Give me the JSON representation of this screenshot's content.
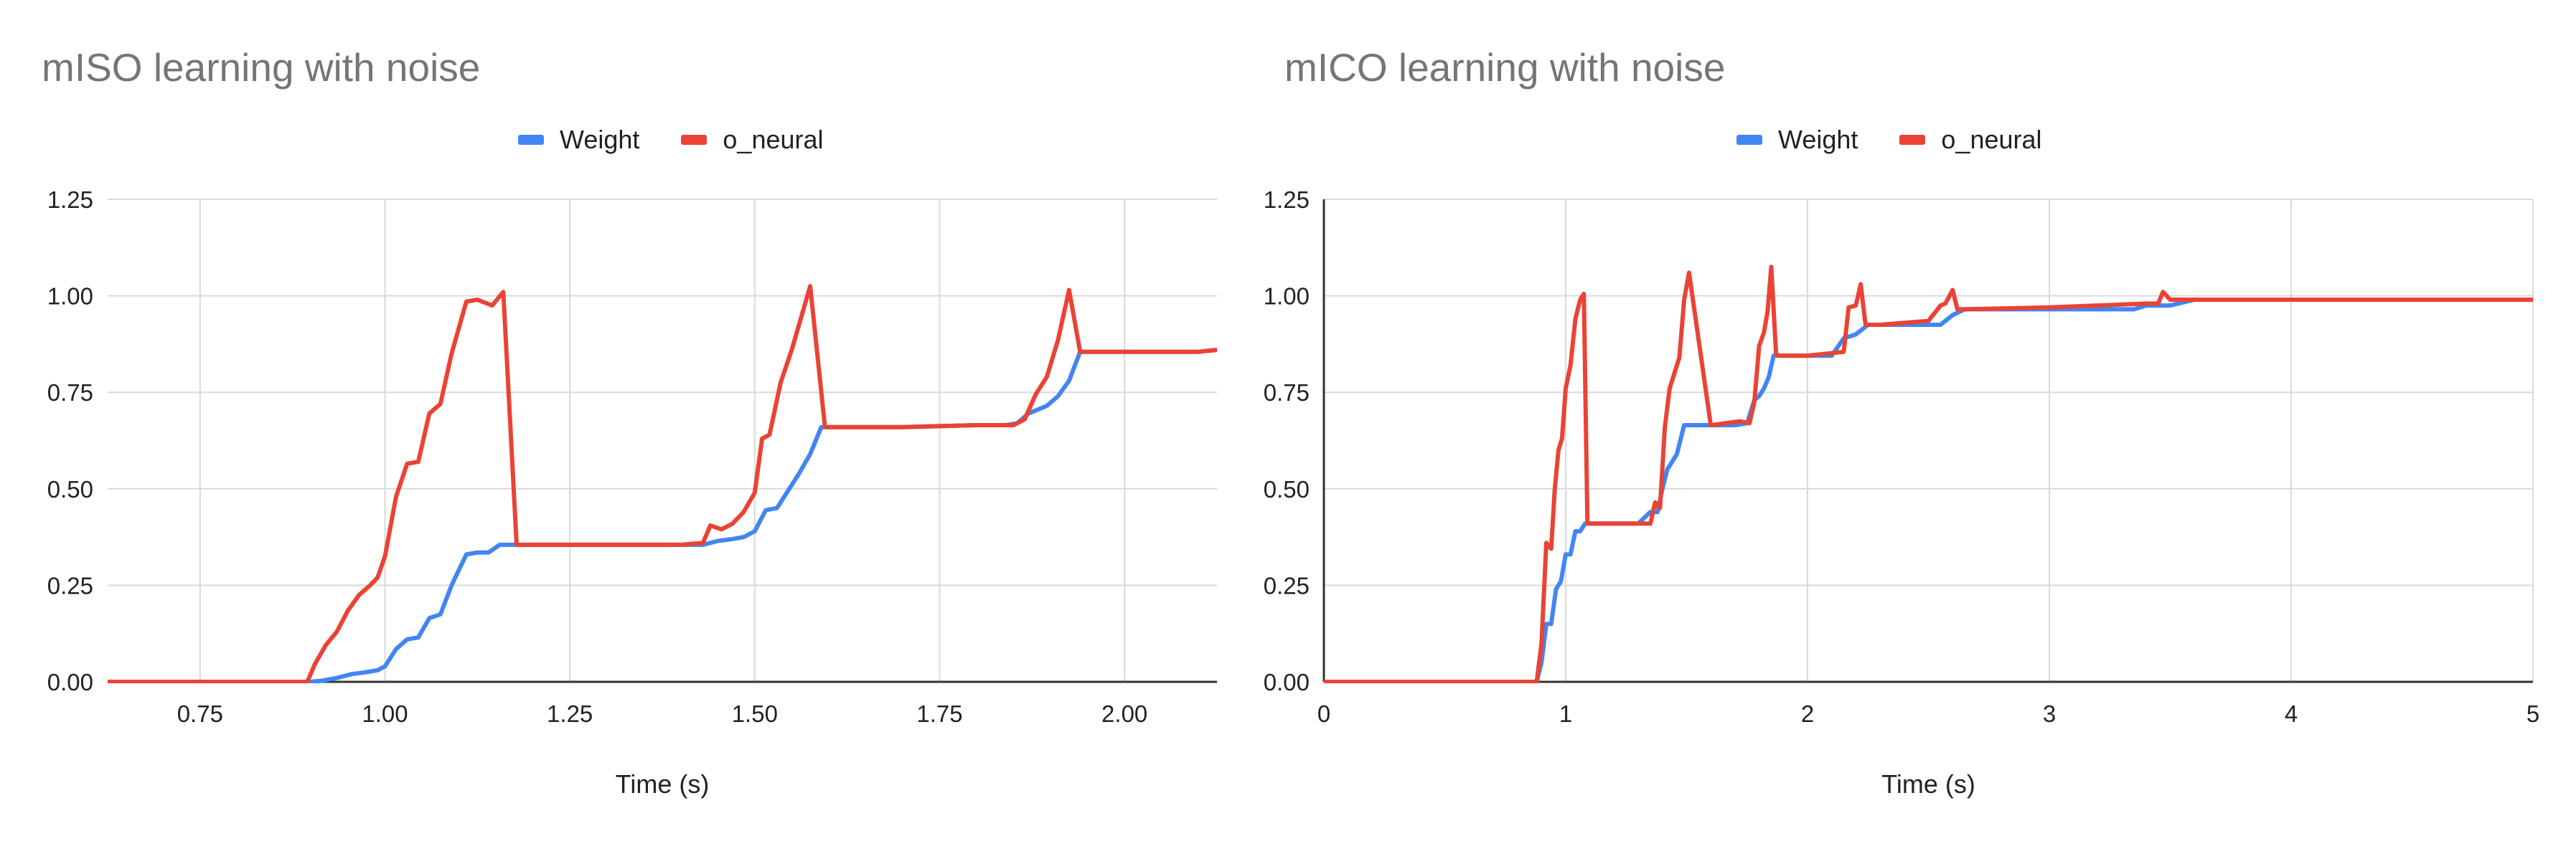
{
  "colors": {
    "weight": "#4285f4",
    "o_neural": "#ea4335",
    "grid": "#d9d9d9",
    "axis": "#333333",
    "title": "#757575",
    "text": "#222222"
  },
  "chart_data": [
    {
      "type": "line",
      "title": "mISO learning with noise",
      "xlabel": "Time (s)",
      "ylabel": "",
      "xlim": [
        0.625,
        2.125
      ],
      "ylim": [
        0,
        1.25
      ],
      "xticks": [
        0.75,
        1.0,
        1.25,
        1.5,
        1.75,
        2.0
      ],
      "xtick_labels": [
        "0.75",
        "1.00",
        "1.25",
        "1.50",
        "1.75",
        "2.00"
      ],
      "yticks": [
        0,
        0.25,
        0.5,
        0.75,
        1.0,
        1.25
      ],
      "ytick_labels": [
        "0.00",
        "0.25",
        "0.50",
        "0.75",
        "1.00",
        "1.25"
      ],
      "grid": true,
      "legend_position": "top",
      "series": [
        {
          "name": "Weight",
          "color": "#4285f4",
          "x": [
            0.625,
            0.9,
            0.915,
            0.935,
            0.955,
            0.975,
            0.99,
            1.0,
            1.015,
            1.03,
            1.045,
            1.06,
            1.075,
            1.09,
            1.11,
            1.125,
            1.14,
            1.155,
            1.18,
            1.3,
            1.4,
            1.43,
            1.45,
            1.47,
            1.485,
            1.5,
            1.515,
            1.53,
            1.545,
            1.56,
            1.575,
            1.59,
            1.7,
            1.8,
            1.84,
            1.855,
            1.87,
            1.895,
            1.91,
            1.925,
            1.94,
            2.1,
            2.125
          ],
          "y": [
            0,
            0,
            0.003,
            0.01,
            0.02,
            0.025,
            0.03,
            0.04,
            0.085,
            0.11,
            0.115,
            0.165,
            0.175,
            0.25,
            0.33,
            0.335,
            0.335,
            0.355,
            0.355,
            0.355,
            0.355,
            0.355,
            0.365,
            0.37,
            0.375,
            0.39,
            0.445,
            0.45,
            0.495,
            0.54,
            0.59,
            0.66,
            0.66,
            0.665,
            0.665,
            0.67,
            0.695,
            0.715,
            0.74,
            0.78,
            0.855,
            0.855,
            0.86
          ]
        },
        {
          "name": "o_neural",
          "color": "#ea4335",
          "x": [
            0.625,
            0.895,
            0.905,
            0.92,
            0.935,
            0.95,
            0.965,
            0.98,
            0.99,
            1.0,
            1.015,
            1.03,
            1.045,
            1.06,
            1.075,
            1.09,
            1.11,
            1.125,
            1.145,
            1.16,
            1.178,
            1.3,
            1.4,
            1.43,
            1.44,
            1.455,
            1.47,
            1.485,
            1.5,
            1.51,
            1.52,
            1.535,
            1.55,
            1.575,
            1.595,
            1.7,
            1.8,
            1.85,
            1.865,
            1.88,
            1.895,
            1.91,
            1.925,
            1.94,
            2.1,
            2.125
          ],
          "y": [
            0,
            0,
            0.045,
            0.095,
            0.13,
            0.185,
            0.225,
            0.25,
            0.27,
            0.325,
            0.48,
            0.565,
            0.57,
            0.695,
            0.72,
            0.85,
            0.985,
            0.99,
            0.975,
            1.01,
            0.355,
            0.355,
            0.355,
            0.36,
            0.405,
            0.395,
            0.41,
            0.44,
            0.49,
            0.63,
            0.64,
            0.775,
            0.86,
            1.025,
            0.66,
            0.66,
            0.665,
            0.665,
            0.68,
            0.745,
            0.79,
            0.885,
            1.015,
            0.855,
            0.855,
            0.86
          ]
        }
      ]
    },
    {
      "type": "line",
      "title": "mICO learning with noise",
      "xlabel": "Time (s)",
      "ylabel": "",
      "xlim": [
        0,
        5
      ],
      "ylim": [
        0,
        1.25
      ],
      "xticks": [
        0,
        1,
        2,
        3,
        4,
        5
      ],
      "xtick_labels": [
        "0",
        "1",
        "2",
        "3",
        "4",
        "5"
      ],
      "yticks": [
        0,
        0.25,
        0.5,
        0.75,
        1.0,
        1.25
      ],
      "ytick_labels": [
        "0.00",
        "0.25",
        "0.50",
        "0.75",
        "1.00",
        "1.25"
      ],
      "grid": true,
      "legend_position": "top",
      "series": [
        {
          "name": "Weight",
          "color": "#4285f4",
          "x": [
            0,
            0.88,
            0.9,
            0.92,
            0.94,
            0.96,
            0.98,
            1.0,
            1.02,
            1.04,
            1.06,
            1.08,
            1.1,
            1.3,
            1.35,
            1.38,
            1.4,
            1.42,
            1.44,
            1.46,
            1.49,
            1.6,
            1.7,
            1.75,
            1.78,
            1.8,
            1.82,
            1.84,
            1.86,
            2.1,
            2.15,
            2.2,
            2.25,
            2.55,
            2.6,
            2.65,
            3.0,
            3.35,
            3.4,
            3.5,
            3.6,
            5.0
          ],
          "y": [
            0,
            0,
            0.05,
            0.15,
            0.15,
            0.24,
            0.26,
            0.33,
            0.33,
            0.39,
            0.39,
            0.41,
            0.41,
            0.41,
            0.44,
            0.44,
            0.5,
            0.55,
            0.57,
            0.59,
            0.665,
            0.665,
            0.665,
            0.67,
            0.73,
            0.74,
            0.76,
            0.79,
            0.845,
            0.845,
            0.89,
            0.9,
            0.925,
            0.925,
            0.95,
            0.965,
            0.965,
            0.965,
            0.975,
            0.975,
            0.99,
            0.99
          ]
        },
        {
          "name": "o_neural",
          "color": "#ea4335",
          "x": [
            0,
            0.88,
            0.9,
            0.92,
            0.94,
            0.955,
            0.97,
            0.985,
            1.0,
            1.02,
            1.04,
            1.06,
            1.075,
            1.09,
            1.1,
            1.2,
            1.35,
            1.37,
            1.39,
            1.41,
            1.43,
            1.45,
            1.47,
            1.49,
            1.51,
            1.6,
            1.72,
            1.76,
            1.78,
            1.8,
            1.82,
            1.835,
            1.85,
            1.87,
            1.88,
            2.0,
            2.15,
            2.17,
            2.2,
            2.22,
            2.24,
            2.26,
            2.3,
            2.5,
            2.55,
            2.57,
            2.6,
            2.62,
            2.65,
            3.0,
            3.4,
            3.45,
            3.47,
            3.5,
            5.0
          ],
          "y": [
            0,
            0,
            0.1,
            0.36,
            0.345,
            0.5,
            0.6,
            0.63,
            0.76,
            0.82,
            0.94,
            0.99,
            1.005,
            0.41,
            0.41,
            0.41,
            0.41,
            0.465,
            0.45,
            0.66,
            0.76,
            0.8,
            0.84,
            0.99,
            1.06,
            0.665,
            0.675,
            0.67,
            0.725,
            0.87,
            0.905,
            0.96,
            1.075,
            0.85,
            0.845,
            0.845,
            0.855,
            0.97,
            0.975,
            1.03,
            0.925,
            0.925,
            0.925,
            0.935,
            0.975,
            0.98,
            1.015,
            0.965,
            0.965,
            0.97,
            0.98,
            0.98,
            1.01,
            0.99,
            0.99
          ]
        }
      ]
    }
  ]
}
